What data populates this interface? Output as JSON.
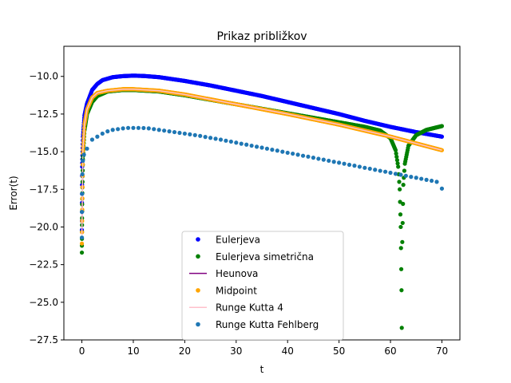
{
  "chart_data": {
    "type": "scatter",
    "title": "Prikaz približkov",
    "xlabel": "t",
    "ylabel": "Error(t)",
    "xlim": [
      -3.5,
      73.5
    ],
    "ylim": [
      -27.5,
      -8.0
    ],
    "xticks": [
      0,
      10,
      20,
      30,
      40,
      50,
      60,
      70
    ],
    "yticks": [
      -27.5,
      -25.0,
      -22.5,
      -20.0,
      -17.5,
      -15.0,
      -12.5,
      -10.0
    ],
    "legend_position": "lower-center",
    "grid": false,
    "series": [
      {
        "name": "Eulerjeva",
        "style": "points",
        "color": "#0000ff",
        "points": [
          [
            0.0,
            -20.2
          ],
          [
            0.05,
            -16.0
          ],
          [
            0.2,
            -14.0
          ],
          [
            0.5,
            -12.6
          ],
          [
            1.0,
            -11.8
          ],
          [
            2.0,
            -10.9
          ],
          [
            3.0,
            -10.5
          ],
          [
            4.0,
            -10.25
          ],
          [
            6.0,
            -10.05
          ],
          [
            8.0,
            -9.98
          ],
          [
            10.0,
            -9.95
          ],
          [
            12.0,
            -9.97
          ],
          [
            15.0,
            -10.05
          ],
          [
            20.0,
            -10.3
          ],
          [
            25.0,
            -10.6
          ],
          [
            30.0,
            -10.95
          ],
          [
            35.0,
            -11.3
          ],
          [
            40.0,
            -11.7
          ],
          [
            45.0,
            -12.1
          ],
          [
            50.0,
            -12.5
          ],
          [
            55.0,
            -12.95
          ],
          [
            60.0,
            -13.35
          ],
          [
            65.0,
            -13.7
          ],
          [
            70.0,
            -14.0
          ]
        ]
      },
      {
        "name": "Eulerjeva simetrična",
        "style": "points",
        "color": "#008000",
        "points": [
          [
            0.0,
            -21.7
          ],
          [
            0.05,
            -18.5
          ],
          [
            0.2,
            -15.5
          ],
          [
            0.5,
            -13.6
          ],
          [
            1.0,
            -12.5
          ],
          [
            2.0,
            -11.7
          ],
          [
            3.0,
            -11.3
          ],
          [
            5.0,
            -11.0
          ],
          [
            8.0,
            -10.9
          ],
          [
            10.0,
            -10.9
          ],
          [
            15.0,
            -11.0
          ],
          [
            20.0,
            -11.25
          ],
          [
            25.0,
            -11.55
          ],
          [
            30.0,
            -11.85
          ],
          [
            35.0,
            -12.15
          ],
          [
            40.0,
            -12.45
          ],
          [
            45.0,
            -12.75
          ],
          [
            50.0,
            -13.05
          ],
          [
            55.0,
            -13.35
          ],
          [
            58.0,
            -13.6
          ],
          [
            60.0,
            -14.1
          ],
          [
            61.0,
            -14.9
          ],
          [
            61.5,
            -16.0
          ],
          [
            61.8,
            -17.5
          ],
          [
            62.0,
            -20.0
          ],
          [
            62.1,
            -22.8
          ],
          [
            62.15,
            -24.2
          ],
          [
            62.2,
            -26.7
          ],
          [
            62.3,
            -21.0
          ],
          [
            62.5,
            -17.2
          ],
          [
            62.8,
            -15.8
          ],
          [
            63.5,
            -14.6
          ],
          [
            65.0,
            -13.9
          ],
          [
            67.0,
            -13.55
          ],
          [
            70.0,
            -13.3
          ]
        ]
      },
      {
        "name": "Heunova",
        "style": "line",
        "color": "#800080",
        "points": [
          [
            0.0,
            -20.5
          ],
          [
            0.2,
            -15.0
          ],
          [
            0.5,
            -13.2
          ],
          [
            1.0,
            -12.2
          ],
          [
            2.0,
            -11.4
          ],
          [
            3.0,
            -11.1
          ],
          [
            5.0,
            -10.95
          ],
          [
            8.0,
            -10.85
          ],
          [
            10.0,
            -10.85
          ],
          [
            15.0,
            -10.95
          ],
          [
            20.0,
            -11.2
          ],
          [
            30.0,
            -11.85
          ],
          [
            40.0,
            -12.5
          ],
          [
            50.0,
            -13.2
          ],
          [
            60.0,
            -14.0
          ],
          [
            70.0,
            -14.9
          ]
        ]
      },
      {
        "name": "Midpoint",
        "style": "points",
        "color": "#ffa500",
        "points": [
          [
            0.0,
            -21.1
          ],
          [
            0.2,
            -15.1
          ],
          [
            0.5,
            -13.2
          ],
          [
            1.0,
            -12.2
          ],
          [
            2.0,
            -11.4
          ],
          [
            3.0,
            -11.1
          ],
          [
            5.0,
            -10.95
          ],
          [
            8.0,
            -10.85
          ],
          [
            10.0,
            -10.85
          ],
          [
            15.0,
            -10.95
          ],
          [
            20.0,
            -11.2
          ],
          [
            30.0,
            -11.85
          ],
          [
            40.0,
            -12.5
          ],
          [
            50.0,
            -13.2
          ],
          [
            60.0,
            -14.0
          ],
          [
            70.0,
            -14.9
          ]
        ]
      },
      {
        "name": "Runge Kutta 4",
        "style": "line",
        "color": "#ffc0cb",
        "points": [
          [
            0.0,
            -20.5
          ],
          [
            0.2,
            -15.0
          ],
          [
            0.5,
            -13.2
          ],
          [
            1.0,
            -12.2
          ],
          [
            2.0,
            -11.4
          ],
          [
            3.0,
            -11.1
          ],
          [
            5.0,
            -10.95
          ],
          [
            8.0,
            -10.85
          ],
          [
            10.0,
            -10.85
          ],
          [
            15.0,
            -10.95
          ],
          [
            20.0,
            -11.2
          ],
          [
            30.0,
            -11.85
          ],
          [
            40.0,
            -12.5
          ],
          [
            50.0,
            -13.2
          ],
          [
            60.0,
            -14.0
          ],
          [
            70.0,
            -14.9
          ]
        ]
      },
      {
        "name": "Runge Kutta Fehlberg",
        "style": "points",
        "color": "#1f77b4",
        "points": [
          [
            0.0,
            -20.7
          ],
          [
            0.02,
            -19.0
          ],
          [
            0.05,
            -17.8
          ],
          [
            0.1,
            -16.5
          ],
          [
            0.2,
            -15.6
          ],
          [
            0.4,
            -15.2
          ],
          [
            1.0,
            -14.8
          ],
          [
            2.0,
            -14.2
          ],
          [
            3.0,
            -14.0
          ],
          [
            4.0,
            -13.8
          ],
          [
            5.0,
            -13.65
          ],
          [
            6.0,
            -13.55
          ],
          [
            7.0,
            -13.5
          ],
          [
            8.0,
            -13.45
          ],
          [
            9.0,
            -13.42
          ],
          [
            10.0,
            -13.42
          ],
          [
            11.0,
            -13.42
          ],
          [
            12.0,
            -13.43
          ],
          [
            13.0,
            -13.45
          ],
          [
            14.0,
            -13.5
          ],
          [
            15.0,
            -13.55
          ],
          [
            16.0,
            -13.6
          ],
          [
            17.0,
            -13.65
          ],
          [
            18.0,
            -13.7
          ],
          [
            19.0,
            -13.75
          ],
          [
            20.0,
            -13.8
          ],
          [
            21.0,
            -13.85
          ],
          [
            22.0,
            -13.9
          ],
          [
            23.0,
            -13.95
          ],
          [
            24.0,
            -14.02
          ],
          [
            25.0,
            -14.08
          ],
          [
            26.0,
            -14.14
          ],
          [
            27.0,
            -14.2
          ],
          [
            28.0,
            -14.27
          ],
          [
            29.0,
            -14.33
          ],
          [
            30.0,
            -14.4
          ],
          [
            31.0,
            -14.47
          ],
          [
            32.0,
            -14.53
          ],
          [
            33.0,
            -14.6
          ],
          [
            34.0,
            -14.67
          ],
          [
            35.0,
            -14.73
          ],
          [
            36.0,
            -14.8
          ],
          [
            37.0,
            -14.87
          ],
          [
            38.0,
            -14.93
          ],
          [
            39.0,
            -15.0
          ],
          [
            40.0,
            -15.07
          ],
          [
            41.0,
            -15.13
          ],
          [
            42.0,
            -15.2
          ],
          [
            43.0,
            -15.27
          ],
          [
            44.0,
            -15.33
          ],
          [
            45.0,
            -15.4
          ],
          [
            46.0,
            -15.47
          ],
          [
            47.0,
            -15.53
          ],
          [
            48.0,
            -15.6
          ],
          [
            49.0,
            -15.67
          ],
          [
            50.0,
            -15.73
          ],
          [
            51.0,
            -15.8
          ],
          [
            52.0,
            -15.87
          ],
          [
            53.0,
            -15.93
          ],
          [
            54.0,
            -16.0
          ],
          [
            55.0,
            -16.07
          ],
          [
            56.0,
            -16.13
          ],
          [
            57.0,
            -16.2
          ],
          [
            58.0,
            -16.27
          ],
          [
            59.0,
            -16.33
          ],
          [
            60.0,
            -16.4
          ],
          [
            61.0,
            -16.47
          ],
          [
            62.0,
            -16.53
          ],
          [
            63.0,
            -16.6
          ],
          [
            64.0,
            -16.67
          ],
          [
            65.0,
            -16.73
          ],
          [
            66.0,
            -16.8
          ],
          [
            67.0,
            -16.87
          ],
          [
            68.0,
            -16.93
          ],
          [
            69.0,
            -17.0
          ],
          [
            70.0,
            -17.45
          ]
        ]
      }
    ]
  }
}
